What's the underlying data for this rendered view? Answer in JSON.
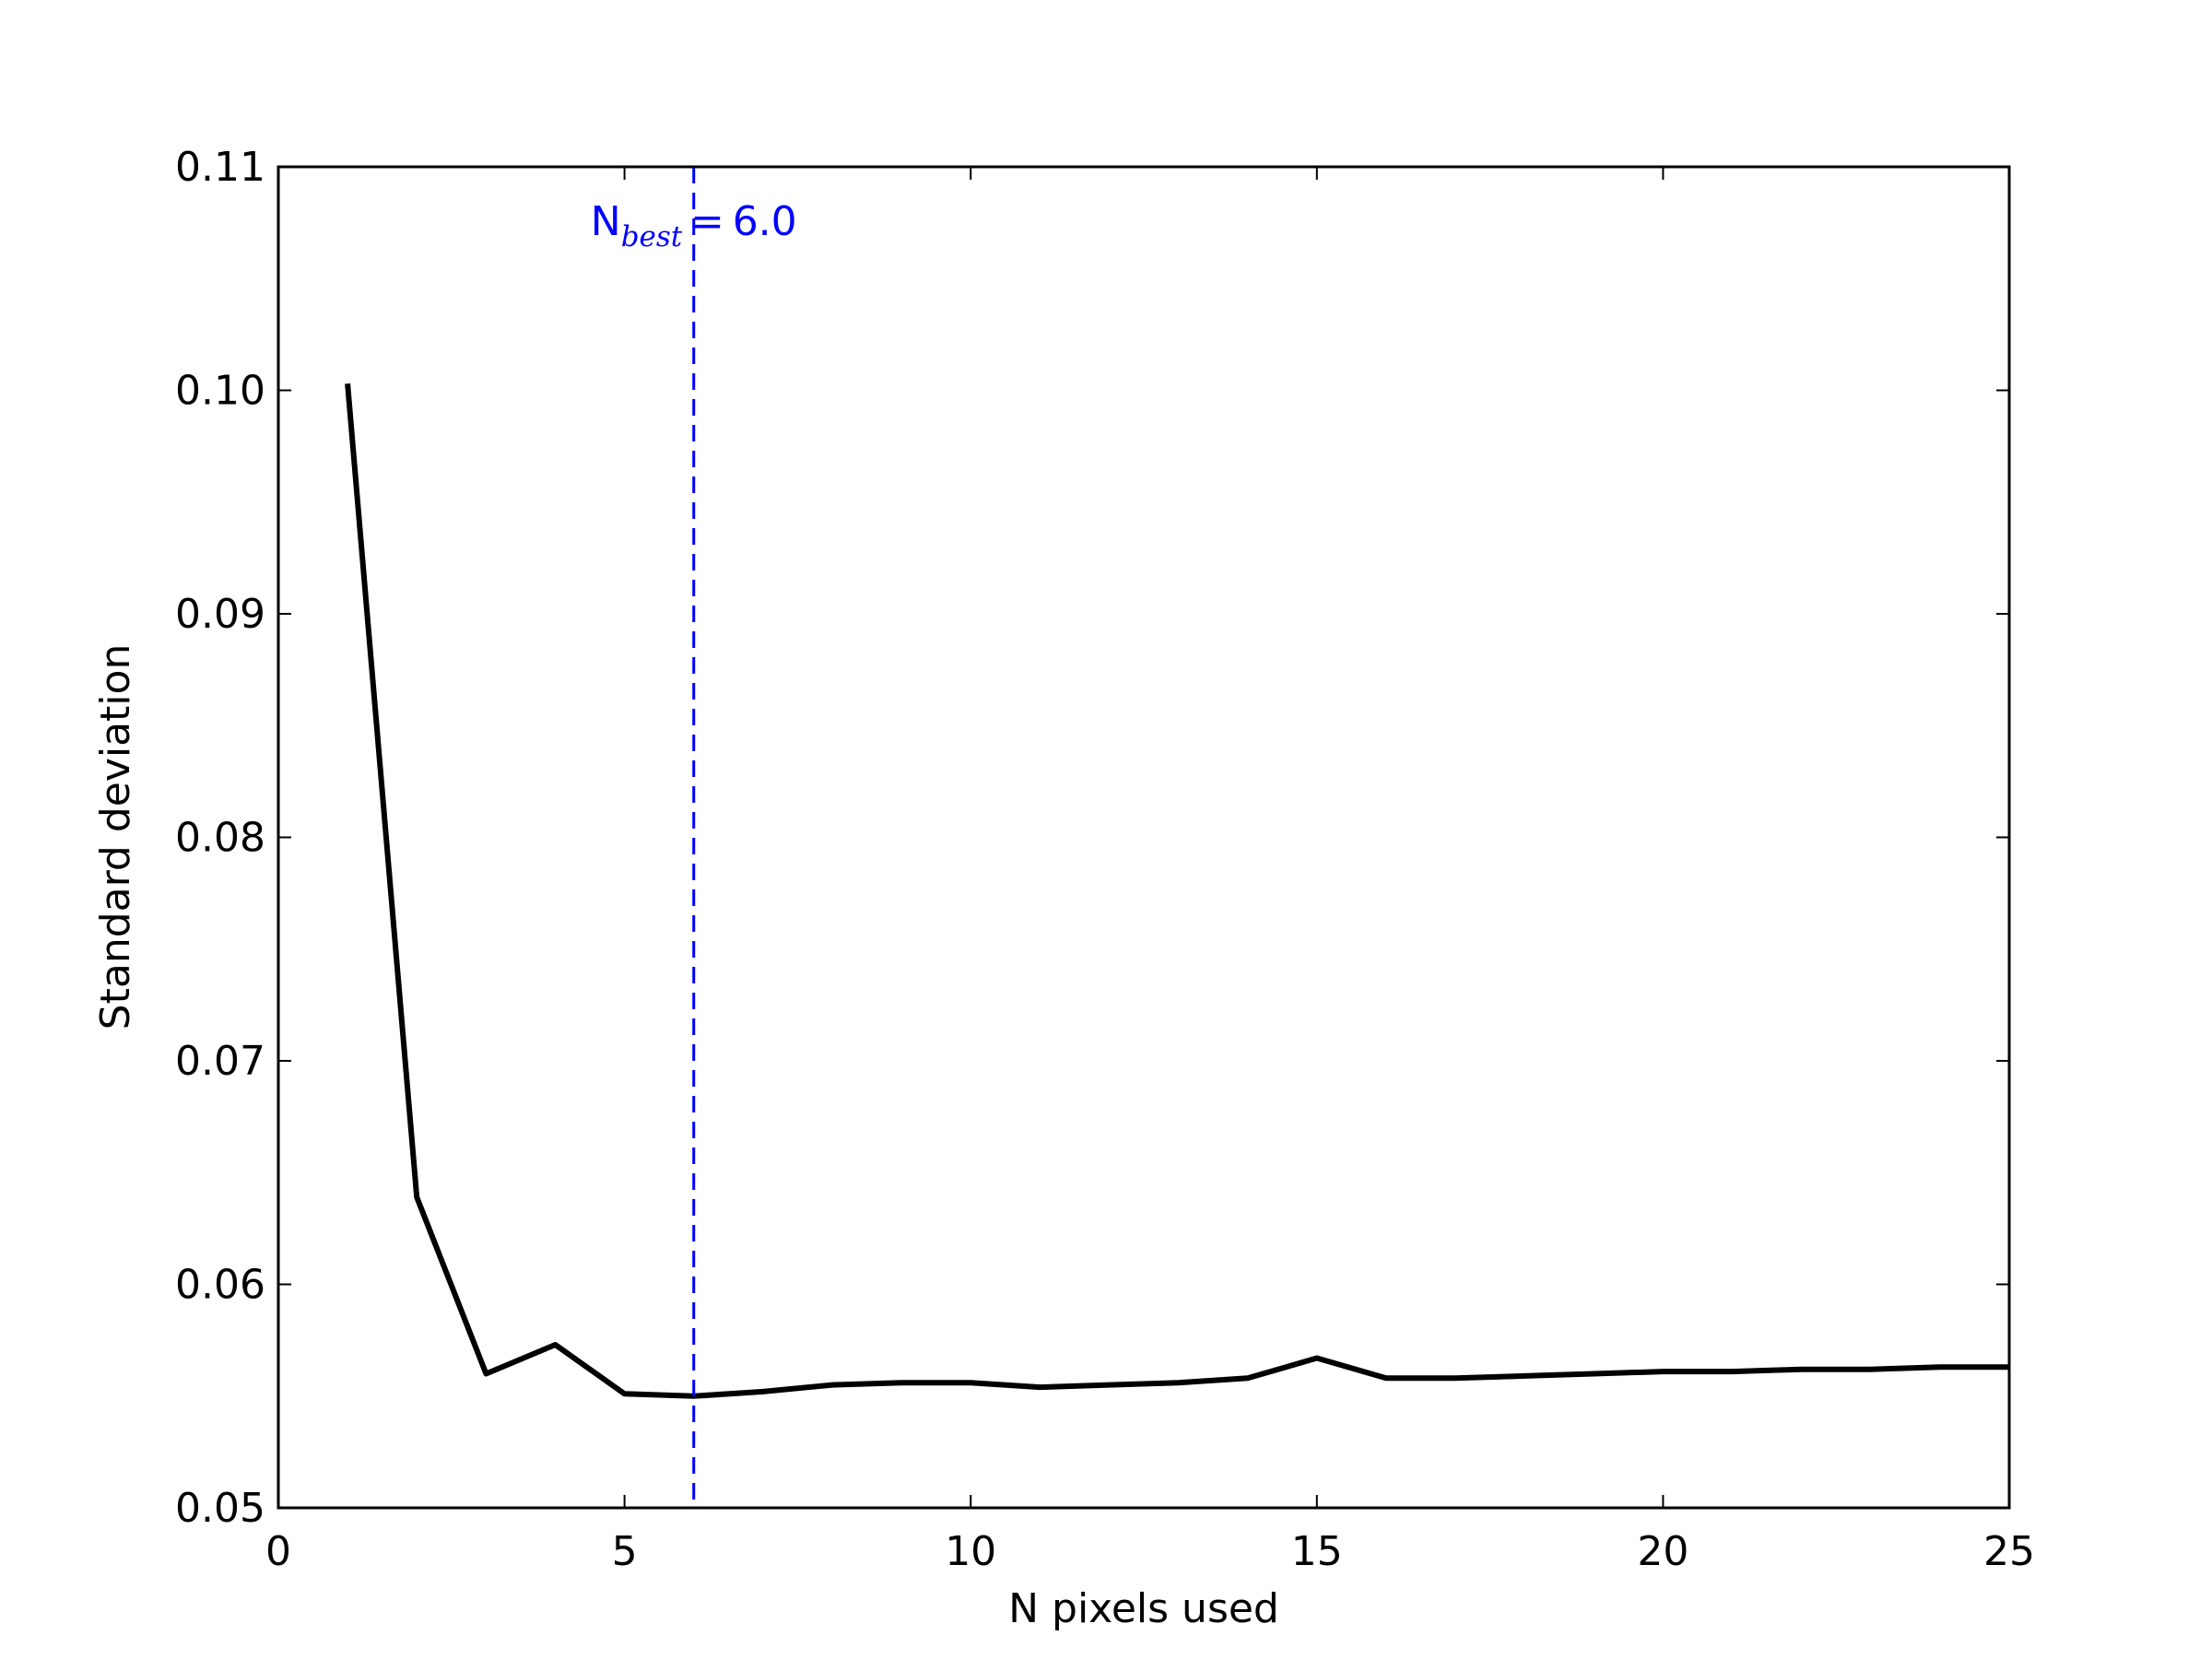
{
  "chart_data": {
    "type": "line",
    "title": "",
    "xlabel": "N pixels used",
    "ylabel": "Standard deviation",
    "xlim": [
      0,
      25
    ],
    "ylim": [
      0.05,
      0.11
    ],
    "xticks": [
      "0",
      "5",
      "10",
      "15",
      "20",
      "25"
    ],
    "yticks": [
      "0.05",
      "0.06",
      "0.07",
      "0.08",
      "0.09",
      "0.10",
      "0.11"
    ],
    "grid": false,
    "series": [
      {
        "color": "#000000",
        "x": [
          1,
          2,
          3,
          4,
          5,
          6,
          7,
          8,
          9,
          10,
          11,
          12,
          13,
          14,
          15,
          16,
          17,
          18,
          19,
          20,
          21,
          22,
          23,
          24,
          25
        ],
        "y": [
          0.1003,
          0.0639,
          0.056,
          0.0573,
          0.0551,
          0.055,
          0.0552,
          0.0555,
          0.0556,
          0.0556,
          0.0554,
          0.0555,
          0.0556,
          0.0558,
          0.0567,
          0.0558,
          0.0558,
          0.0559,
          0.056,
          0.0561,
          0.0561,
          0.0562,
          0.0562,
          0.0563,
          0.0563
        ]
      }
    ],
    "vline": {
      "x": 6.0,
      "color": "#0000ff",
      "style": "dashed",
      "label_main": "N",
      "label_sub": "best",
      "label_value": "6.0"
    }
  }
}
